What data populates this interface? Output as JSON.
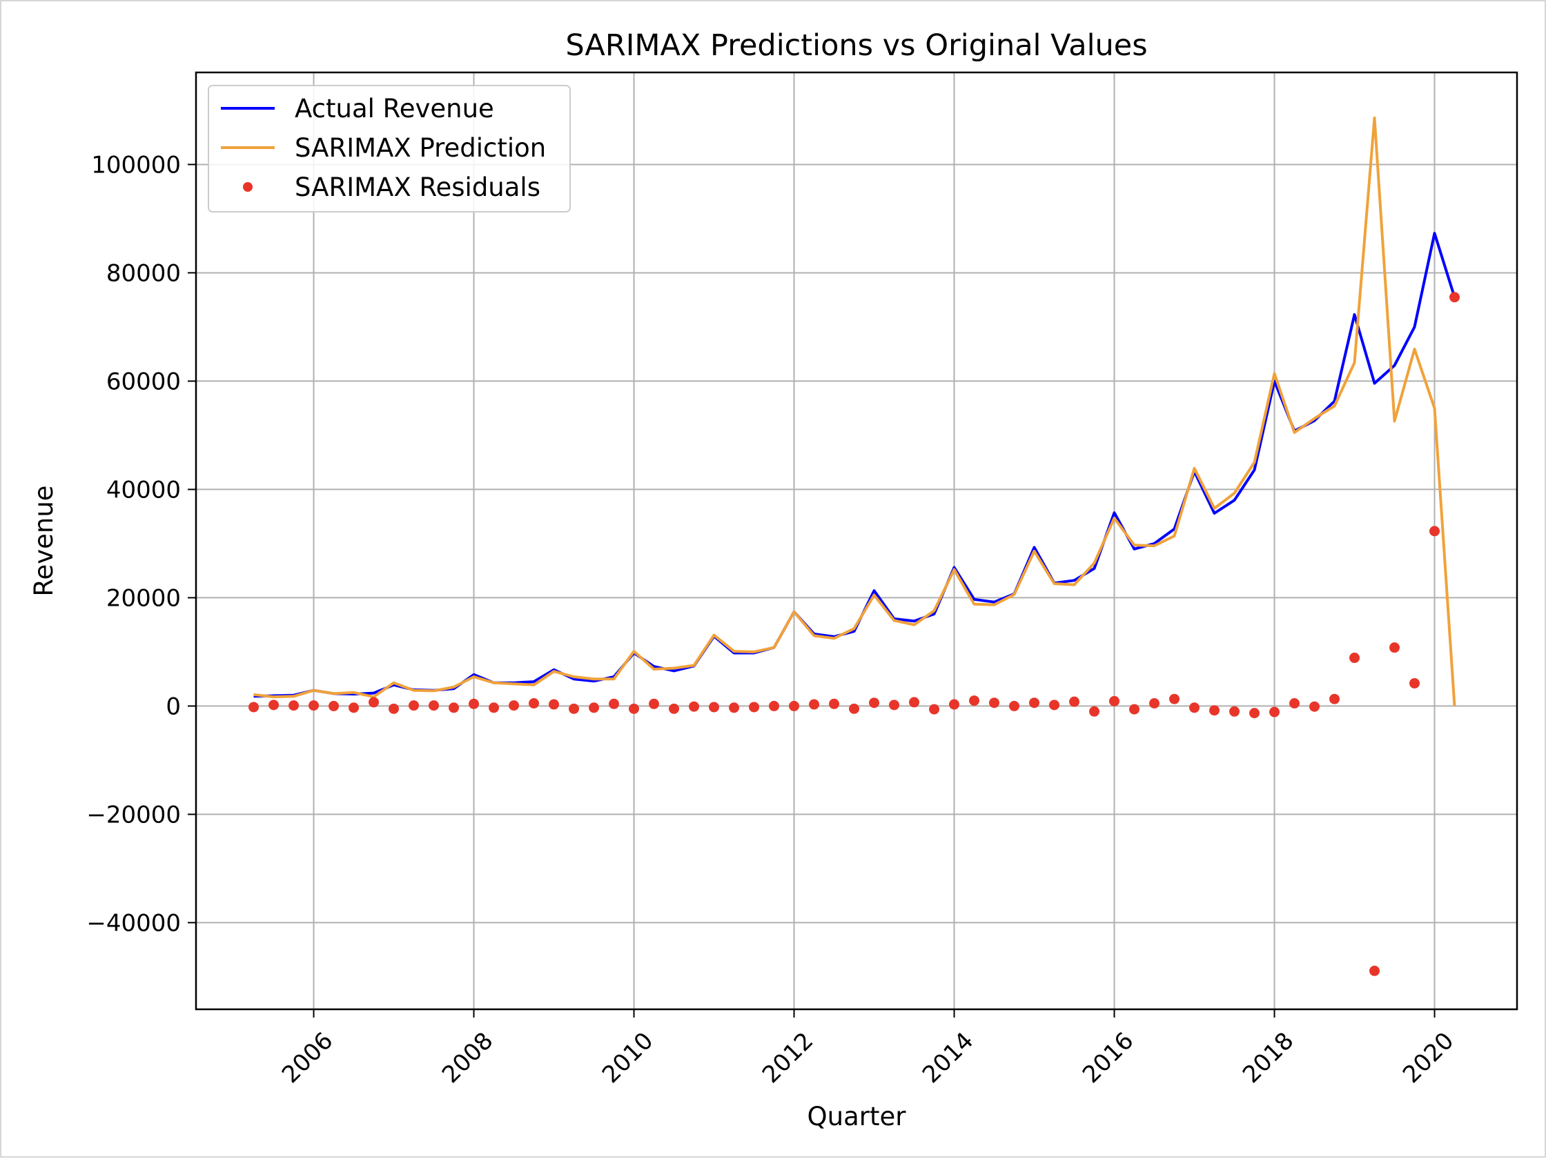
{
  "chart_data": {
    "type": "line",
    "title": "SARIMAX Predictions vs Original Values",
    "xlabel": "Quarter",
    "ylabel": "Revenue",
    "xlim": [
      2004.53,
      2021.03
    ],
    "ylim": [
      -56000,
      117000
    ],
    "x_ticks": [
      "2006",
      "2008",
      "2010",
      "2012",
      "2014",
      "2016",
      "2018",
      "2020"
    ],
    "y_ticks": [
      "100000",
      "80000",
      "60000",
      "40000",
      "20000",
      "0",
      "−20000",
      "−40000"
    ],
    "grid": true,
    "legend_position": "upper-left",
    "x_start": 2005.25,
    "x_step": 0.25,
    "series": [
      {
        "name": "Actual Revenue",
        "style": "line",
        "color": "#0000ff",
        "values": [
          1800,
          1900,
          2000,
          2900,
          2300,
          2200,
          2400,
          3900,
          3000,
          2900,
          3200,
          5800,
          4300,
          4300,
          4500,
          6700,
          5000,
          4600,
          5400,
          9800,
          7300,
          6500,
          7400,
          12900,
          9800,
          9800,
          10800,
          17400,
          13300,
          12800,
          13800,
          21300,
          16100,
          15700,
          17000,
          25600,
          19700,
          19200,
          20700,
          29300,
          22700,
          23200,
          25400,
          35700,
          29000,
          30000,
          32700,
          43300,
          35600,
          38000,
          43600,
          60000,
          50800,
          52700,
          56300,
          72300,
          59600,
          62900,
          70000,
          87300,
          75500
        ]
      },
      {
        "name": "SARIMAX Prediction",
        "style": "line",
        "color": "#f0a23a",
        "values": [
          2100,
          1700,
          1800,
          2900,
          2300,
          2500,
          1700,
          4300,
          2900,
          2800,
          3500,
          5400,
          4300,
          4100,
          3900,
          6400,
          5400,
          5000,
          5000,
          10100,
          6800,
          7000,
          7500,
          13100,
          10100,
          10000,
          10800,
          17400,
          13000,
          12500,
          14300,
          20500,
          15800,
          15000,
          17600,
          25200,
          18800,
          18700,
          20600,
          28600,
          22600,
          22400,
          26400,
          34700,
          29700,
          29600,
          31400,
          43900,
          36500,
          39300,
          45000,
          61400,
          50500,
          53100,
          55400,
          63400,
          108600,
          52600,
          65900,
          55000,
          0
        ]
      },
      {
        "name": "SARIMAX Residuals",
        "style": "scatter",
        "color": "#e8352a",
        "values": [
          -200,
          200,
          100,
          100,
          0,
          -300,
          700,
          -500,
          100,
          100,
          -300,
          400,
          -300,
          100,
          500,
          300,
          -500,
          -300,
          400,
          -500,
          400,
          -500,
          -100,
          -200,
          -300,
          -200,
          0,
          0,
          300,
          400,
          -500,
          600,
          200,
          700,
          -600,
          300,
          1000,
          600,
          0,
          600,
          200,
          800,
          -1000,
          900,
          -600,
          500,
          1300,
          -300,
          -800,
          -1000,
          -1300,
          -1100,
          500,
          -100,
          1300,
          8900,
          -48900,
          10800,
          4200,
          32300,
          75500
        ]
      }
    ]
  }
}
